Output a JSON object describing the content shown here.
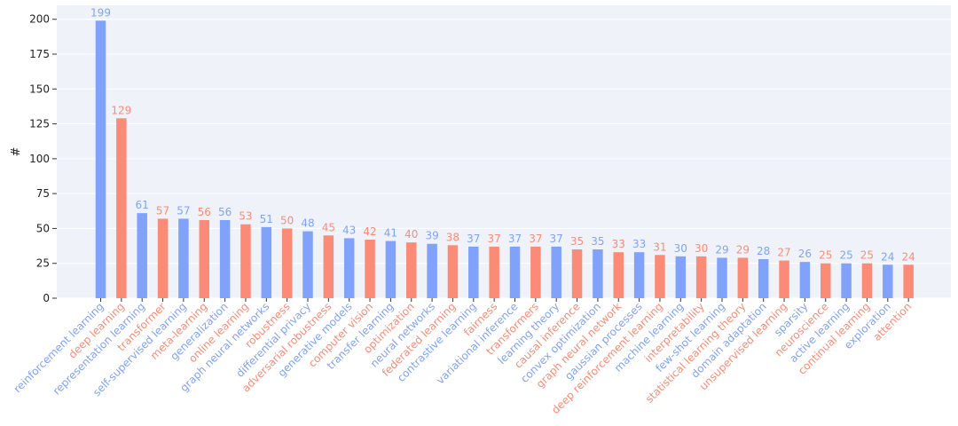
{
  "chart_data": {
    "type": "bar",
    "ylabel": "#",
    "xlabel": "",
    "title": "",
    "ylim": [
      0,
      210
    ],
    "yticks": [
      0,
      25,
      50,
      75,
      100,
      125,
      150,
      175,
      200
    ],
    "grid": true,
    "colors": {
      "blue": "#80a2fb",
      "red": "#fb8b76",
      "plot_bg": "#eff3f9",
      "grid": "#ffffff"
    },
    "categories": [
      "reinforcement learning",
      "deep learning",
      "representation learning",
      "transformer",
      "self-supervised learning",
      "meta-learning",
      "generalization",
      "online learning",
      "graph neural networks",
      "robustness",
      "differential privacy",
      "adversarial robustness",
      "generative models",
      "computer vision",
      "transfer learning",
      "optimization",
      "neural networks",
      "federated learning",
      "contrastive learning",
      "fairness",
      "variational inference",
      "transformers",
      "learning theory",
      "causal inference",
      "convex optimization",
      "graph neural network",
      "gaussian processes",
      "deep reinforcement learning",
      "machine learning",
      "interpretability",
      "few-shot learning",
      "statistical learning theory",
      "domain adaptation",
      "unsupervised learning",
      "sparsity",
      "neuroscience",
      "active learning",
      "continual learning",
      "exploration",
      "attention"
    ],
    "values": [
      199,
      129,
      61,
      57,
      57,
      56,
      56,
      53,
      51,
      50,
      48,
      45,
      43,
      42,
      41,
      40,
      39,
      38,
      37,
      37,
      37,
      37,
      37,
      35,
      35,
      33,
      33,
      31,
      30,
      30,
      29,
      29,
      28,
      27,
      26,
      25,
      25,
      25,
      24,
      24
    ],
    "bar_colors": [
      "blue",
      "red",
      "blue",
      "red",
      "blue",
      "red",
      "blue",
      "red",
      "blue",
      "red",
      "blue",
      "red",
      "blue",
      "red",
      "blue",
      "red",
      "blue",
      "red",
      "blue",
      "red",
      "blue",
      "red",
      "blue",
      "red",
      "blue",
      "red",
      "blue",
      "red",
      "blue",
      "red",
      "blue",
      "red",
      "blue",
      "red",
      "blue",
      "red",
      "blue",
      "red",
      "blue",
      "red"
    ]
  }
}
